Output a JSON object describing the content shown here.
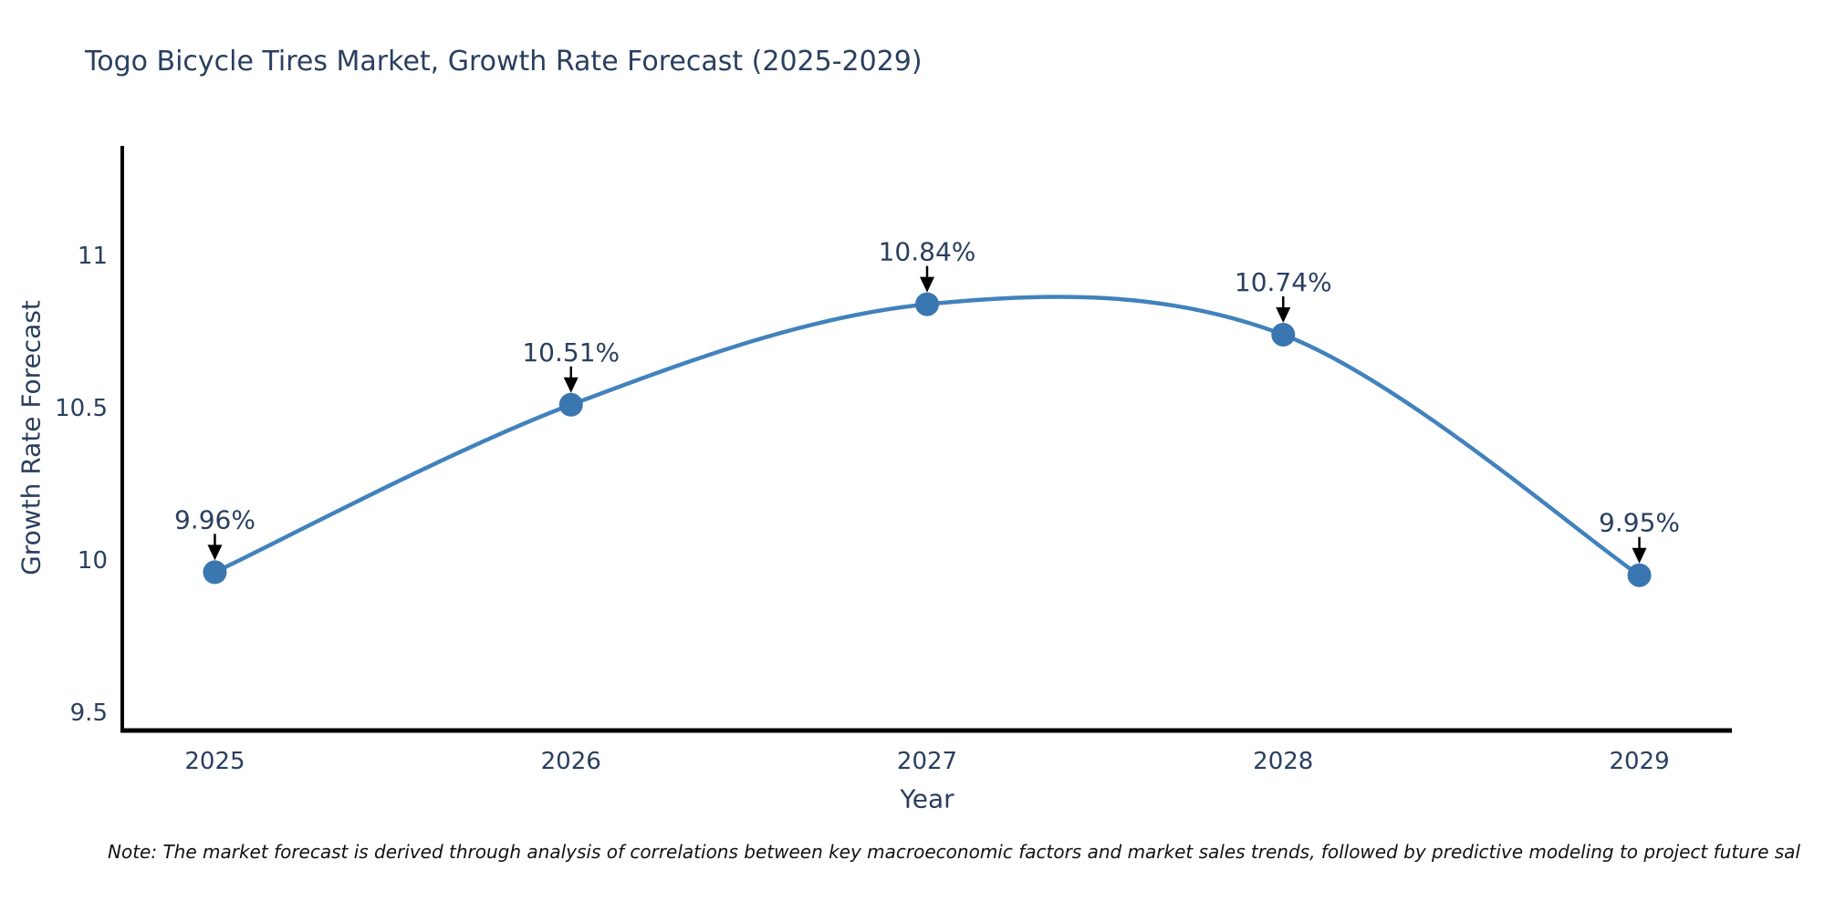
{
  "title": "Togo Bicycle Tires Market, Growth Rate Forecast (2025-2029)",
  "note": "Note: The market forecast is derived through analysis of correlations between key macroeconomic factors and market sales trends, followed by predictive modeling to project future sal",
  "chart_data": {
    "type": "line",
    "title": "Togo Bicycle Tires Market, Growth Rate Forecast (2025-2029)",
    "xlabel": "Year",
    "ylabel": "Growth Rate Forecast",
    "x": [
      2025,
      2026,
      2027,
      2028,
      2029
    ],
    "series": [
      {
        "name": "Growth Rate Forecast",
        "values": [
          9.96,
          10.51,
          10.84,
          10.74,
          9.95
        ]
      }
    ],
    "point_labels": [
      "9.96%",
      "10.51%",
      "10.84%",
      "10.74%",
      "9.95%"
    ],
    "xticks": [
      "2025",
      "2026",
      "2027",
      "2028",
      "2029"
    ],
    "yticks": [
      9.5,
      10,
      10.5,
      11
    ],
    "xlim": [
      2024.74,
      2029.26
    ],
    "ylim": [
      9.44,
      11.36
    ],
    "grid": false,
    "legend": "none",
    "line_shape": "spline",
    "colors": {
      "line": "#4282bc",
      "marker": "#3a77b0",
      "axis_line": "#000000",
      "text": "#2a3f5f",
      "annotation_arrow": "#000000",
      "note_text": "#111111",
      "background": "#ffffff"
    }
  }
}
